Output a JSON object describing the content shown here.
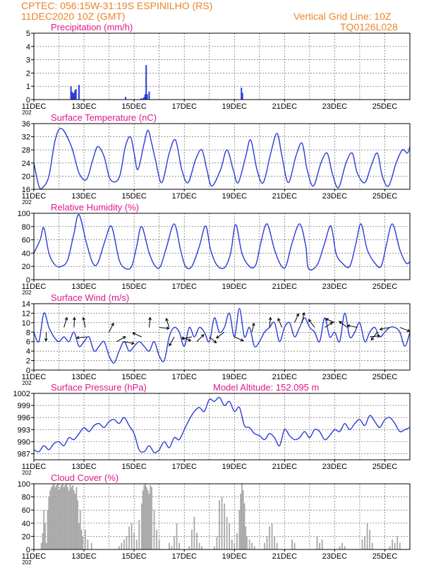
{
  "header": {
    "line1": "CPTEC:   056:15W-31:19S   ESPINILHO (RS)",
    "line2": "11DEC2020 10Z (GMT)",
    "grid_note": "Vertical Grid Line: 10Z",
    "code": "TQ0126L028"
  },
  "colors": {
    "header": "#e8862a",
    "title": "#e0188c",
    "series": "#2a3cd6",
    "cloud": "#a8a8a8",
    "axis": "#000000"
  },
  "x_ticks": [
    "11DEC",
    "13DEC",
    "15DEC",
    "17DEC",
    "19DEC",
    "21DEC",
    "23DEC",
    "25DEC"
  ],
  "x_year_label": "202",
  "chart_data": [
    {
      "id": "precip",
      "type": "bar",
      "title": "Precipitation (mm/h)",
      "ylim": [
        0,
        5
      ],
      "yticks": [
        "0",
        "1",
        "2",
        "3",
        "4",
        "5"
      ],
      "x_days": [
        1.48,
        1.52,
        1.56,
        1.6,
        1.64,
        1.68,
        1.8,
        3.66,
        4.28,
        4.36,
        4.4,
        4.44,
        4.48,
        4.52,
        4.6,
        8.28,
        8.32
      ],
      "values": [
        1.0,
        0.6,
        0.5,
        0.5,
        0.7,
        0.8,
        1.1,
        0.2,
        0.1,
        0.1,
        0.2,
        0.4,
        2.6,
        0.4,
        0.6,
        0.9,
        0.5
      ]
    },
    {
      "id": "temp",
      "type": "line",
      "title": "Surface Temperature (nC)",
      "ylim": [
        16,
        36
      ],
      "yticks": [
        "16",
        "20",
        "24",
        "28",
        "32",
        "36"
      ],
      "x_days": [
        0,
        0.2,
        0.35,
        0.6,
        0.85,
        1.1,
        1.5,
        1.8,
        2.1,
        2.35,
        2.55,
        2.8,
        3.05,
        3.4,
        3.65,
        3.85,
        4.0,
        4.15,
        4.4,
        4.55,
        4.7,
        4.85,
        5.1,
        5.4,
        5.65,
        5.9,
        6.15,
        6.45,
        6.7,
        6.9,
        7.1,
        7.45,
        7.7,
        7.95,
        8.15,
        8.45,
        8.65,
        8.9,
        9.15,
        9.45,
        9.7,
        9.9,
        10.15,
        10.45,
        10.7,
        10.9,
        11.15,
        11.45,
        11.7,
        11.9,
        12.15,
        12.45,
        12.7,
        12.9,
        13.2,
        13.45,
        13.7,
        13.9,
        14.15,
        14.45,
        14.7,
        14.9,
        15.0
      ],
      "values": [
        24,
        17,
        16.5,
        20,
        31,
        34.5,
        29,
        21,
        19,
        25,
        29,
        26,
        19,
        19.5,
        29,
        32,
        27,
        22,
        30,
        34,
        30,
        25,
        18,
        27,
        31,
        22,
        18,
        25,
        28,
        22,
        17,
        22,
        28,
        22,
        18,
        26,
        31,
        22,
        18,
        27,
        33,
        26,
        18,
        26,
        30,
        22,
        17,
        24,
        27,
        21,
        16.5,
        24,
        27,
        21,
        18,
        23,
        27,
        20,
        17,
        24,
        28,
        27,
        29
      ]
    },
    {
      "id": "rh",
      "type": "line",
      "title": "Relative Humidity (%)",
      "ylim": [
        0,
        100
      ],
      "yticks": [
        "0",
        "20",
        "40",
        "60",
        "80",
        "100"
      ],
      "x_days": [
        0,
        0.25,
        0.4,
        0.6,
        0.85,
        1.1,
        1.35,
        1.6,
        1.8,
        2.1,
        2.35,
        2.55,
        2.85,
        3.1,
        3.4,
        3.65,
        3.9,
        4.1,
        4.3,
        4.6,
        4.85,
        5.05,
        5.3,
        5.6,
        5.85,
        6.05,
        6.3,
        6.6,
        6.85,
        7.05,
        7.3,
        7.6,
        7.85,
        8.05,
        8.3,
        8.6,
        8.85,
        9.05,
        9.3,
        9.6,
        9.85,
        10.05,
        10.3,
        10.6,
        10.85,
        10.95,
        11.3,
        11.6,
        11.85,
        12.05,
        12.3,
        12.6,
        12.85,
        13.05,
        13.3,
        13.6,
        13.85,
        14.05,
        14.3,
        14.6,
        14.85,
        15.0
      ],
      "values": [
        40,
        60,
        78,
        40,
        22,
        20,
        30,
        70,
        98,
        55,
        25,
        25,
        60,
        80,
        30,
        17,
        20,
        50,
        80,
        40,
        20,
        20,
        50,
        84,
        45,
        20,
        20,
        50,
        81,
        45,
        22,
        18,
        40,
        83,
        40,
        20,
        22,
        55,
        84,
        45,
        22,
        20,
        55,
        84,
        50,
        17,
        22,
        55,
        81,
        40,
        25,
        20,
        55,
        84,
        45,
        25,
        20,
        50,
        84,
        45,
        25,
        27
      ]
    },
    {
      "id": "wind",
      "type": "line",
      "title": "Surface Wind (m/s)",
      "ylim": [
        0,
        14
      ],
      "yticks": [
        "0",
        "2",
        "4",
        "6",
        "8",
        "10",
        "12",
        "14"
      ],
      "x_days": [
        0,
        0.2,
        0.4,
        0.6,
        0.8,
        1.0,
        1.2,
        1.4,
        1.6,
        1.8,
        2.0,
        2.2,
        2.4,
        2.6,
        2.8,
        3.0,
        3.2,
        3.4,
        3.6,
        3.8,
        4.0,
        4.2,
        4.4,
        4.6,
        4.8,
        5.0,
        5.2,
        5.4,
        5.6,
        5.8,
        6.0,
        6.2,
        6.4,
        6.6,
        6.8,
        7.0,
        7.2,
        7.4,
        7.6,
        7.8,
        8.0,
        8.2,
        8.4,
        8.6,
        8.8,
        9.0,
        9.2,
        9.4,
        9.6,
        9.8,
        10.0,
        10.2,
        10.4,
        10.6,
        10.8,
        11.0,
        11.2,
        11.4,
        11.6,
        11.8,
        12.0,
        12.2,
        12.4,
        12.6,
        12.8,
        13.0,
        13.2,
        13.4,
        13.6,
        13.8,
        14.0,
        14.2,
        14.4,
        14.6,
        14.8,
        15.0
      ],
      "values": [
        8,
        6,
        12,
        9,
        7,
        6,
        7,
        6,
        8,
        5,
        6,
        7,
        4,
        5,
        6,
        3,
        1.5,
        4,
        6,
        4,
        5,
        6,
        5,
        4,
        6,
        3,
        2,
        7,
        9,
        8,
        5,
        9,
        7,
        9,
        8,
        6,
        11,
        8,
        9,
        12,
        7,
        13,
        7,
        9,
        5,
        6,
        8,
        9,
        10,
        6,
        9,
        10,
        7,
        9,
        11,
        9,
        8,
        6,
        11,
        7,
        8,
        6,
        12,
        7,
        8,
        10,
        6,
        8,
        9,
        7,
        8,
        9,
        9,
        8,
        5,
        8
      ]
    },
    {
      "id": "pressure",
      "type": "line",
      "title": "Surface Pressure (hPa)",
      "annotation": "Model Altitude: 152.095 m",
      "ylim": [
        985.5,
        1002
      ],
      "yticks": [
        "987",
        "990",
        "993",
        "996",
        "999",
        "1002"
      ],
      "ytick_values": [
        987,
        990,
        993,
        996,
        999,
        1002
      ],
      "x_days": [
        0,
        0.2,
        0.4,
        0.6,
        0.8,
        1.0,
        1.2,
        1.4,
        1.6,
        1.8,
        2.0,
        2.2,
        2.4,
        2.6,
        2.8,
        3.0,
        3.2,
        3.4,
        3.6,
        3.8,
        4.0,
        4.2,
        4.4,
        4.6,
        4.8,
        5.0,
        5.2,
        5.4,
        5.6,
        5.8,
        6.0,
        6.2,
        6.4,
        6.6,
        6.8,
        7.0,
        7.2,
        7.4,
        7.6,
        7.8,
        8.0,
        8.2,
        8.4,
        8.6,
        8.8,
        9.0,
        9.2,
        9.4,
        9.6,
        9.8,
        10.0,
        10.2,
        10.4,
        10.6,
        10.8,
        11.0,
        11.2,
        11.4,
        11.6,
        11.8,
        12.0,
        12.2,
        12.4,
        12.6,
        12.8,
        13.0,
        13.2,
        13.4,
        13.6,
        13.8,
        14.0,
        14.2,
        14.4,
        14.6,
        14.8,
        15.0
      ],
      "values": [
        988,
        987.5,
        989,
        988,
        989.5,
        990,
        989,
        991,
        990.5,
        992,
        993.5,
        992.5,
        994,
        994.5,
        993.5,
        995,
        995.5,
        994.5,
        996,
        994,
        992,
        988,
        987.5,
        989,
        987.3,
        988,
        990,
        988.5,
        991,
        990.5,
        993,
        995.5,
        997.5,
        998.5,
        997.5,
        1000.5,
        1000,
        1001,
        999,
        1000,
        997.5,
        998.5,
        994,
        993.5,
        992,
        991.5,
        990.5,
        992,
        991,
        989,
        993,
        991.5,
        990.5,
        991,
        992.5,
        991,
        993,
        992.5,
        990.5,
        991.5,
        993,
        992.5,
        994.5,
        993,
        994.5,
        995.5,
        994,
        996.5,
        995,
        993.5,
        995.5,
        996,
        994.5,
        992.5,
        993,
        993.5
      ]
    },
    {
      "id": "cloud",
      "type": "bar",
      "title": "Cloud Cover (%)",
      "ylim": [
        0,
        100
      ],
      "yticks": [
        "0",
        "20",
        "40",
        "60",
        "80",
        "100"
      ],
      "x_days": [
        0.3,
        0.35,
        0.4,
        0.45,
        0.5,
        0.55,
        0.6,
        0.65,
        0.7,
        0.75,
        0.8,
        0.85,
        0.9,
        0.95,
        1.0,
        1.05,
        1.1,
        1.15,
        1.2,
        1.25,
        1.3,
        1.35,
        1.4,
        1.45,
        1.5,
        1.55,
        1.6,
        1.65,
        1.7,
        1.75,
        1.8,
        1.85,
        1.9,
        1.95,
        2.05,
        2.15,
        2.3,
        3.4,
        3.5,
        3.6,
        3.7,
        3.8,
        3.9,
        4.0,
        4.1,
        4.2,
        4.3,
        4.35,
        4.4,
        4.45,
        4.5,
        4.55,
        4.6,
        4.65,
        4.7,
        4.8,
        4.9,
        5.0,
        5.4,
        5.5,
        5.6,
        5.7,
        5.8,
        6.2,
        6.3,
        6.4,
        6.5,
        6.6,
        6.7,
        7.2,
        7.3,
        7.4,
        7.5,
        7.6,
        7.7,
        7.8,
        7.9,
        8.0,
        8.1,
        8.2,
        8.25,
        8.3,
        8.35,
        8.4,
        8.45,
        8.5,
        8.6,
        8.7,
        8.8,
        9.2,
        9.3,
        9.4,
        9.5,
        9.6,
        9.7,
        10.3,
        10.4,
        11.3,
        11.4,
        11.5,
        12.2,
        12.3,
        12.4,
        13.1,
        13.2,
        13.3,
        13.4,
        13.5,
        14.2,
        14.3,
        14.4,
        14.5,
        14.6
      ],
      "values": [
        10,
        25,
        60,
        40,
        10,
        60,
        80,
        90,
        95,
        98,
        100,
        95,
        98,
        100,
        90,
        95,
        98,
        100,
        95,
        98,
        100,
        95,
        90,
        100,
        95,
        98,
        90,
        85,
        95,
        75,
        40,
        60,
        30,
        20,
        30,
        15,
        10,
        5,
        10,
        15,
        20,
        35,
        40,
        25,
        15,
        45,
        70,
        90,
        98,
        100,
        95,
        90,
        85,
        98,
        95,
        60,
        30,
        15,
        10,
        5,
        20,
        40,
        10,
        5,
        30,
        50,
        25,
        10,
        5,
        5,
        20,
        75,
        80,
        70,
        50,
        40,
        15,
        10,
        25,
        60,
        85,
        100,
        90,
        70,
        35,
        20,
        15,
        10,
        5,
        10,
        20,
        35,
        40,
        20,
        10,
        15,
        10,
        20,
        10,
        15,
        5,
        10,
        5,
        15,
        20,
        40,
        30,
        10,
        5,
        15,
        10,
        20,
        10
      ]
    }
  ]
}
